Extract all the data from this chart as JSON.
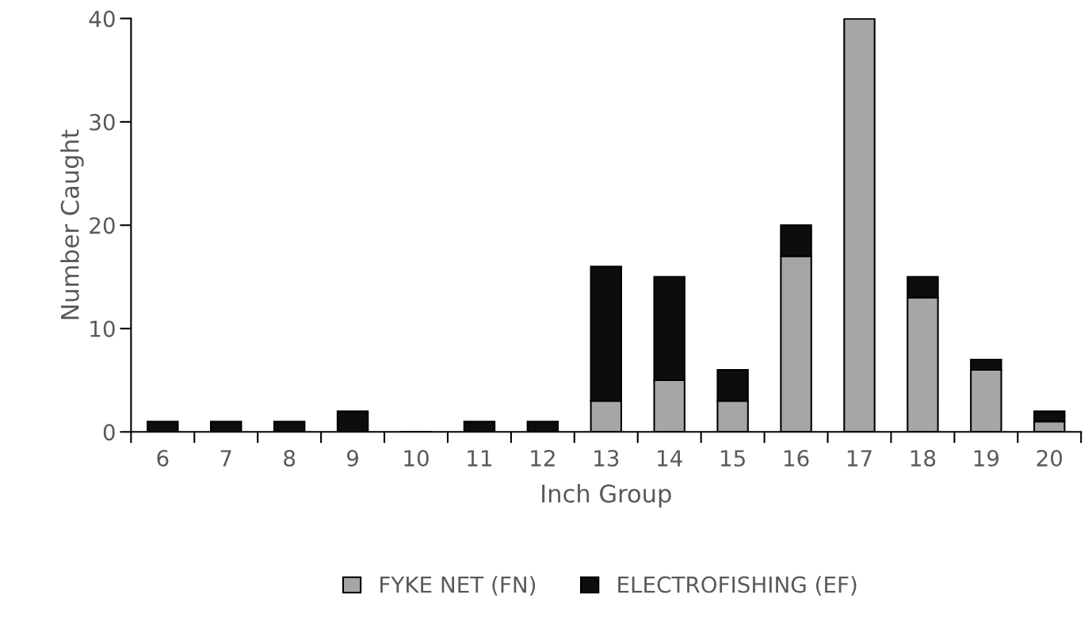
{
  "chart_data": {
    "type": "bar",
    "stacked": true,
    "xlabel": "Inch Group",
    "ylabel": "Number Caught",
    "categories": [
      "6",
      "7",
      "8",
      "9",
      "10",
      "11",
      "12",
      "13",
      "14",
      "15",
      "16",
      "17",
      "18",
      "19",
      "20"
    ],
    "series": [
      {
        "name": "FYKE NET (FN)",
        "color": "#a6a6a6",
        "values": [
          0,
          0,
          0,
          0,
          0,
          0,
          0,
          3,
          5,
          3,
          17,
          40,
          13,
          6,
          1
        ]
      },
      {
        "name": "ELECTROFISHING (EF)",
        "color": "#0d0d0d",
        "values": [
          1,
          1,
          1,
          2,
          0,
          1,
          1,
          13,
          10,
          3,
          3,
          0,
          2,
          1,
          1
        ]
      }
    ],
    "ylim": [
      0,
      40
    ],
    "yticks": [
      0,
      10,
      20,
      30,
      40
    ],
    "grid": false,
    "legend": "bottom"
  }
}
